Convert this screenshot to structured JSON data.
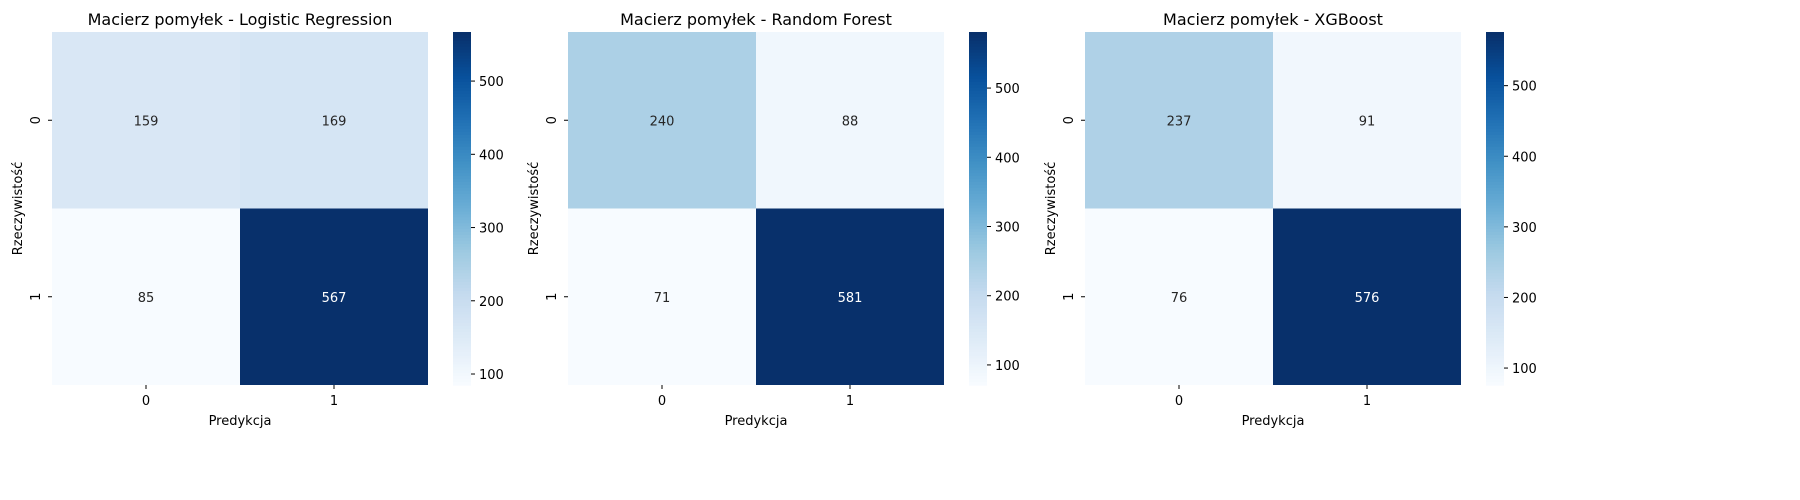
{
  "chart_data": [
    {
      "type": "heatmap",
      "title": "Macierz pomyłek - Logistic Regression",
      "xlabel": "Predykcja",
      "ylabel": "Rzeczywistość",
      "x_categories": [
        "0",
        "1"
      ],
      "y_categories": [
        "0",
        "1"
      ],
      "values": [
        [
          159,
          169
        ],
        [
          85,
          567
        ]
      ],
      "colormap": "Blues",
      "colorbar_ticks": [
        100,
        200,
        300,
        400,
        500
      ],
      "color_range": [
        85,
        567
      ],
      "grid": false
    },
    {
      "type": "heatmap",
      "title": "Macierz pomyłek - Random Forest",
      "xlabel": "Predykcja",
      "ylabel": "Rzeczywistość",
      "x_categories": [
        "0",
        "1"
      ],
      "y_categories": [
        "0",
        "1"
      ],
      "values": [
        [
          240,
          88
        ],
        [
          71,
          581
        ]
      ],
      "colormap": "Blues",
      "colorbar_ticks": [
        100,
        200,
        300,
        400,
        500
      ],
      "color_range": [
        71,
        581
      ],
      "grid": false
    },
    {
      "type": "heatmap",
      "title": "Macierz pomyłek - XGBoost",
      "xlabel": "Predykcja",
      "ylabel": "Rzeczywistość",
      "x_categories": [
        "0",
        "1"
      ],
      "y_categories": [
        "0",
        "1"
      ],
      "values": [
        [
          237,
          91
        ],
        [
          76,
          576
        ]
      ],
      "colormap": "Blues",
      "colorbar_ticks": [
        100,
        200,
        300,
        400,
        500
      ],
      "color_range": [
        76,
        576
      ],
      "grid": false
    }
  ]
}
